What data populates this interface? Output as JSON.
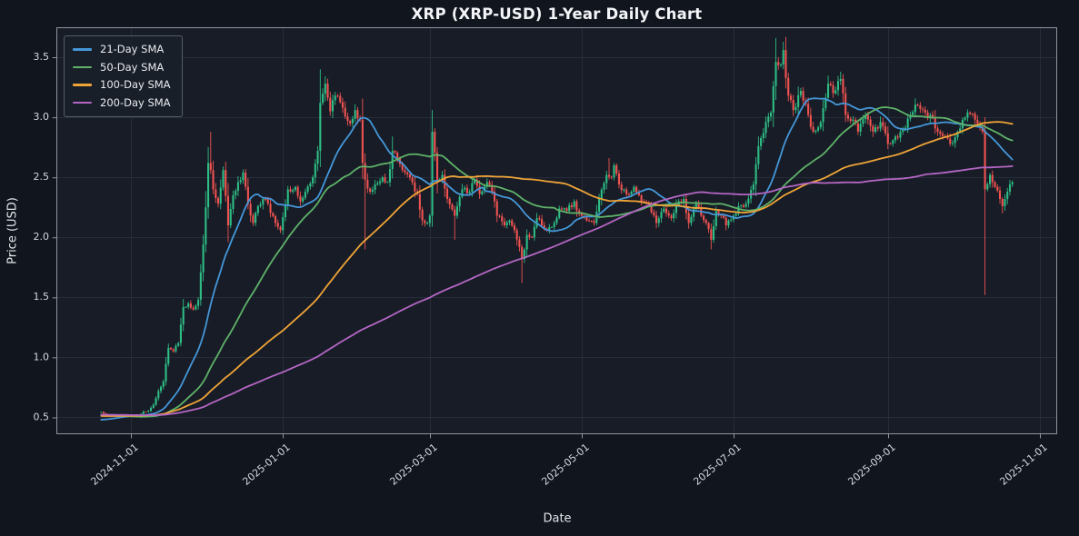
{
  "theme": {
    "figure_bg": "#11151d",
    "plot_bg": "#171c26",
    "grid": "#262c3a",
    "spine": "rgba(165,170,180,0.85)",
    "title_text": "#f2f4f7",
    "tick_text": "#d5d8df",
    "axis_label_text": "#e2e5ea",
    "legend_bg": "#1a1f2a",
    "legend_border": "#575d68"
  },
  "chart_data": {
    "type": "candlestick",
    "title": "XRP (XRP-USD) 1-Year Daily Chart",
    "xlabel": "Date",
    "ylabel": "Price (USD)",
    "grid": true,
    "legend_position": "upper-left",
    "x_range": [
      "2024-10-02",
      "2025-11-08"
    ],
    "ylim": [
      0.36,
      3.75
    ],
    "x_ticks": [
      "2024-11-01",
      "2025-01-01",
      "2025-03-01",
      "2025-05-01",
      "2025-07-01",
      "2025-09-01",
      "2025-11-01"
    ],
    "y_ticks": [
      0.5,
      1.0,
      1.5,
      2.0,
      2.5,
      3.0,
      3.5
    ],
    "candles": {
      "up_color": "#2ebd85",
      "down_color": "#f05351",
      "data_start": "2024-10-20",
      "data_end": "2025-10-21",
      "close_keyframes": [
        [
          "2024-10-20",
          0.545
        ],
        [
          "2024-10-23",
          0.52
        ],
        [
          "2024-10-26",
          0.525
        ],
        [
          "2024-10-29",
          0.525
        ],
        [
          "2024-11-01",
          0.512
        ],
        [
          "2024-11-04",
          0.505
        ],
        [
          "2024-11-06",
          0.548
        ],
        [
          "2024-11-08",
          0.555
        ],
        [
          "2024-11-10",
          0.605
        ],
        [
          "2024-11-12",
          0.72
        ],
        [
          "2024-11-14",
          0.8
        ],
        [
          "2024-11-16",
          1.08
        ],
        [
          "2024-11-18",
          1.05
        ],
        [
          "2024-11-20",
          1.12
        ],
        [
          "2024-11-22",
          1.42
        ],
        [
          "2024-11-24",
          1.45
        ],
        [
          "2024-11-26",
          1.4
        ],
        [
          "2024-11-28",
          1.48
        ],
        [
          "2024-11-30",
          1.94
        ],
        [
          "2024-12-01",
          2.25
        ],
        [
          "2024-12-02",
          2.62
        ],
        [
          "2024-12-03",
          2.56
        ],
        [
          "2024-12-04",
          2.4
        ],
        [
          "2024-12-06",
          2.28
        ],
        [
          "2024-12-08",
          2.56
        ],
        [
          "2024-12-10",
          2.1
        ],
        [
          "2024-12-12",
          2.35
        ],
        [
          "2024-12-14",
          2.46
        ],
        [
          "2024-12-16",
          2.54
        ],
        [
          "2024-12-18",
          2.28
        ],
        [
          "2024-12-20",
          2.12
        ],
        [
          "2024-12-22",
          2.26
        ],
        [
          "2024-12-24",
          2.32
        ],
        [
          "2024-12-26",
          2.28
        ],
        [
          "2024-12-29",
          2.12
        ],
        [
          "2024-12-31",
          2.06
        ],
        [
          "2025-01-03",
          2.4
        ],
        [
          "2025-01-06",
          2.42
        ],
        [
          "2025-01-08",
          2.3
        ],
        [
          "2025-01-10",
          2.38
        ],
        [
          "2025-01-13",
          2.5
        ],
        [
          "2025-01-15",
          2.72
        ],
        [
          "2025-01-16",
          3.12
        ],
        [
          "2025-01-18",
          3.28
        ],
        [
          "2025-01-20",
          3.05
        ],
        [
          "2025-01-22",
          3.18
        ],
        [
          "2025-01-25",
          3.08
        ],
        [
          "2025-01-28",
          2.95
        ],
        [
          "2025-01-30",
          3.06
        ],
        [
          "2025-02-01",
          2.98
        ],
        [
          "2025-02-02",
          2.62
        ],
        [
          "2025-02-03",
          2.48
        ],
        [
          "2025-02-05",
          2.38
        ],
        [
          "2025-02-07",
          2.44
        ],
        [
          "2025-02-10",
          2.5
        ],
        [
          "2025-02-12",
          2.46
        ],
        [
          "2025-02-14",
          2.72
        ],
        [
          "2025-02-16",
          2.66
        ],
        [
          "2025-02-18",
          2.56
        ],
        [
          "2025-02-21",
          2.5
        ],
        [
          "2025-02-24",
          2.36
        ],
        [
          "2025-02-26",
          2.14
        ],
        [
          "2025-02-28",
          2.12
        ],
        [
          "2025-03-01",
          2.18
        ],
        [
          "2025-03-02",
          2.88
        ],
        [
          "2025-03-04",
          2.48
        ],
        [
          "2025-03-06",
          2.52
        ],
        [
          "2025-03-08",
          2.32
        ],
        [
          "2025-03-11",
          2.18
        ],
        [
          "2025-03-14",
          2.4
        ],
        [
          "2025-03-17",
          2.38
        ],
        [
          "2025-03-19",
          2.48
        ],
        [
          "2025-03-21",
          2.36
        ],
        [
          "2025-03-24",
          2.46
        ],
        [
          "2025-03-26",
          2.38
        ],
        [
          "2025-03-28",
          2.18
        ],
        [
          "2025-03-31",
          2.1
        ],
        [
          "2025-04-02",
          2.14
        ],
        [
          "2025-04-04",
          2.06
        ],
        [
          "2025-04-06",
          1.92
        ],
        [
          "2025-04-07",
          1.82
        ],
        [
          "2025-04-09",
          2.02
        ],
        [
          "2025-04-11",
          2.0
        ],
        [
          "2025-04-13",
          2.16
        ],
        [
          "2025-04-15",
          2.1
        ],
        [
          "2025-04-17",
          2.06
        ],
        [
          "2025-04-20",
          2.12
        ],
        [
          "2025-04-22",
          2.24
        ],
        [
          "2025-04-25",
          2.22
        ],
        [
          "2025-04-28",
          2.3
        ],
        [
          "2025-04-30",
          2.2
        ],
        [
          "2025-05-03",
          2.14
        ],
        [
          "2025-05-06",
          2.12
        ],
        [
          "2025-05-08",
          2.32
        ],
        [
          "2025-05-11",
          2.52
        ],
        [
          "2025-05-13",
          2.5
        ],
        [
          "2025-05-14",
          2.6
        ],
        [
          "2025-05-16",
          2.44
        ],
        [
          "2025-05-19",
          2.36
        ],
        [
          "2025-05-22",
          2.42
        ],
        [
          "2025-05-25",
          2.3
        ],
        [
          "2025-05-28",
          2.28
        ],
        [
          "2025-05-31",
          2.12
        ],
        [
          "2025-06-03",
          2.24
        ],
        [
          "2025-06-06",
          2.16
        ],
        [
          "2025-06-09",
          2.3
        ],
        [
          "2025-06-11",
          2.32
        ],
        [
          "2025-06-13",
          2.12
        ],
        [
          "2025-06-16",
          2.28
        ],
        [
          "2025-06-18",
          2.18
        ],
        [
          "2025-06-20",
          2.12
        ],
        [
          "2025-06-22",
          1.98
        ],
        [
          "2025-06-24",
          2.22
        ],
        [
          "2025-06-26",
          2.18
        ],
        [
          "2025-06-28",
          2.1
        ],
        [
          "2025-07-01",
          2.18
        ],
        [
          "2025-07-03",
          2.26
        ],
        [
          "2025-07-06",
          2.28
        ],
        [
          "2025-07-09",
          2.44
        ],
        [
          "2025-07-11",
          2.76
        ],
        [
          "2025-07-14",
          2.96
        ],
        [
          "2025-07-16",
          3.04
        ],
        [
          "2025-07-17",
          3.26
        ],
        [
          "2025-07-18",
          3.46
        ],
        [
          "2025-07-20",
          3.44
        ],
        [
          "2025-07-21",
          3.56
        ],
        [
          "2025-07-23",
          3.18
        ],
        [
          "2025-07-25",
          3.06
        ],
        [
          "2025-07-28",
          3.22
        ],
        [
          "2025-07-31",
          3.02
        ],
        [
          "2025-08-02",
          2.88
        ],
        [
          "2025-08-05",
          2.96
        ],
        [
          "2025-08-08",
          3.28
        ],
        [
          "2025-08-10",
          3.2
        ],
        [
          "2025-08-13",
          3.32
        ],
        [
          "2025-08-15",
          3.02
        ],
        [
          "2025-08-18",
          2.98
        ],
        [
          "2025-08-20",
          2.88
        ],
        [
          "2025-08-23",
          3.02
        ],
        [
          "2025-08-26",
          2.88
        ],
        [
          "2025-08-29",
          2.96
        ],
        [
          "2025-09-01",
          2.78
        ],
        [
          "2025-09-04",
          2.84
        ],
        [
          "2025-09-07",
          2.9
        ],
        [
          "2025-09-10",
          3.02
        ],
        [
          "2025-09-13",
          3.1
        ],
        [
          "2025-09-16",
          3.04
        ],
        [
          "2025-09-18",
          3.02
        ],
        [
          "2025-09-21",
          2.88
        ],
        [
          "2025-09-24",
          2.84
        ],
        [
          "2025-09-26",
          2.78
        ],
        [
          "2025-09-29",
          2.88
        ],
        [
          "2025-10-01",
          2.98
        ],
        [
          "2025-10-03",
          3.04
        ],
        [
          "2025-10-06",
          2.98
        ],
        [
          "2025-10-08",
          2.92
        ],
        [
          "2025-10-09",
          2.88
        ],
        [
          "2025-10-10",
          2.4
        ],
        [
          "2025-10-12",
          2.52
        ],
        [
          "2025-10-14",
          2.42
        ],
        [
          "2025-10-16",
          2.32
        ],
        [
          "2025-10-17",
          2.26
        ],
        [
          "2025-10-19",
          2.38
        ],
        [
          "2025-10-21",
          2.46
        ]
      ],
      "wick_extremes": [
        [
          "2024-12-03",
          "high",
          2.88
        ],
        [
          "2024-12-10",
          "low",
          1.96
        ],
        [
          "2025-01-16",
          "high",
          3.4
        ],
        [
          "2025-02-03",
          "low",
          1.9
        ],
        [
          "2025-02-14",
          "high",
          2.84
        ],
        [
          "2025-03-02",
          "high",
          2.96
        ],
        [
          "2025-03-11",
          "low",
          1.98
        ],
        [
          "2025-04-07",
          "low",
          1.62
        ],
        [
          "2025-05-12",
          "high",
          2.66
        ],
        [
          "2025-06-22",
          "low",
          1.9
        ],
        [
          "2025-07-18",
          "high",
          3.66
        ],
        [
          "2025-07-21",
          "high",
          3.62
        ],
        [
          "2025-08-13",
          "high",
          3.38
        ],
        [
          "2025-10-10",
          "low",
          1.52
        ],
        [
          "2025-10-17",
          "low",
          2.2
        ]
      ]
    },
    "overlays": [
      {
        "name": "21-Day SMA",
        "color": "#4597d9",
        "window": 21
      },
      {
        "name": "50-Day SMA",
        "color": "#5fb269",
        "window": 50
      },
      {
        "name": "100-Day SMA",
        "color": "#f0a437",
        "window": 100
      },
      {
        "name": "200-Day SMA",
        "color": "#b566c5",
        "window": 200
      }
    ],
    "prehistory_baseline": 0.52
  }
}
